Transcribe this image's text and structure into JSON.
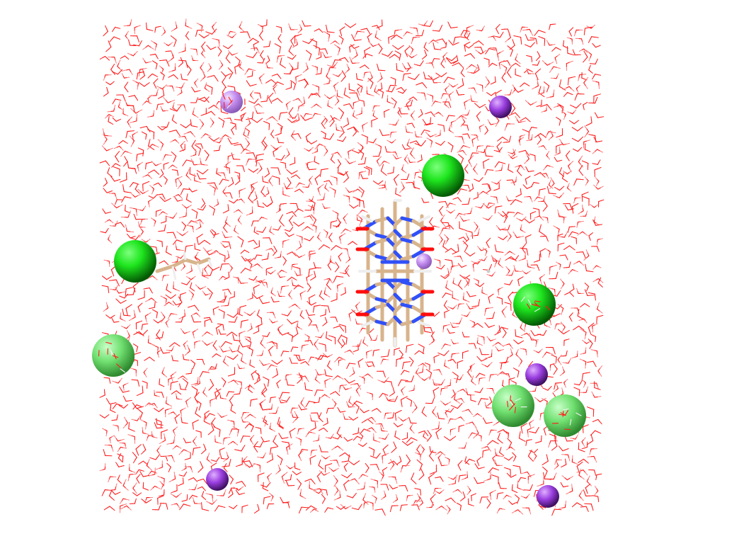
{
  "scene": {
    "type": "molecular-dynamics-snapshot",
    "background": "#ffffff",
    "colors": {
      "water_oxygen": "#ff1a1a",
      "water_hydrogen": "#f2f2f2",
      "carbon": "#d8b48c",
      "nitrogen": "#3050f8",
      "oxygen": "#ff0d0d",
      "hydrogen": "#eeeeee",
      "chloride_dark": "#1ee61e",
      "chloride_light": "#6ee86e",
      "sodium_dark": "#a040e0",
      "sodium_light": "#c890f0"
    },
    "components": [
      "water-solvent-box",
      "cucurbituril-host",
      "chloride-ions",
      "sodium-ions",
      "alkyl-guest-chain"
    ]
  }
}
